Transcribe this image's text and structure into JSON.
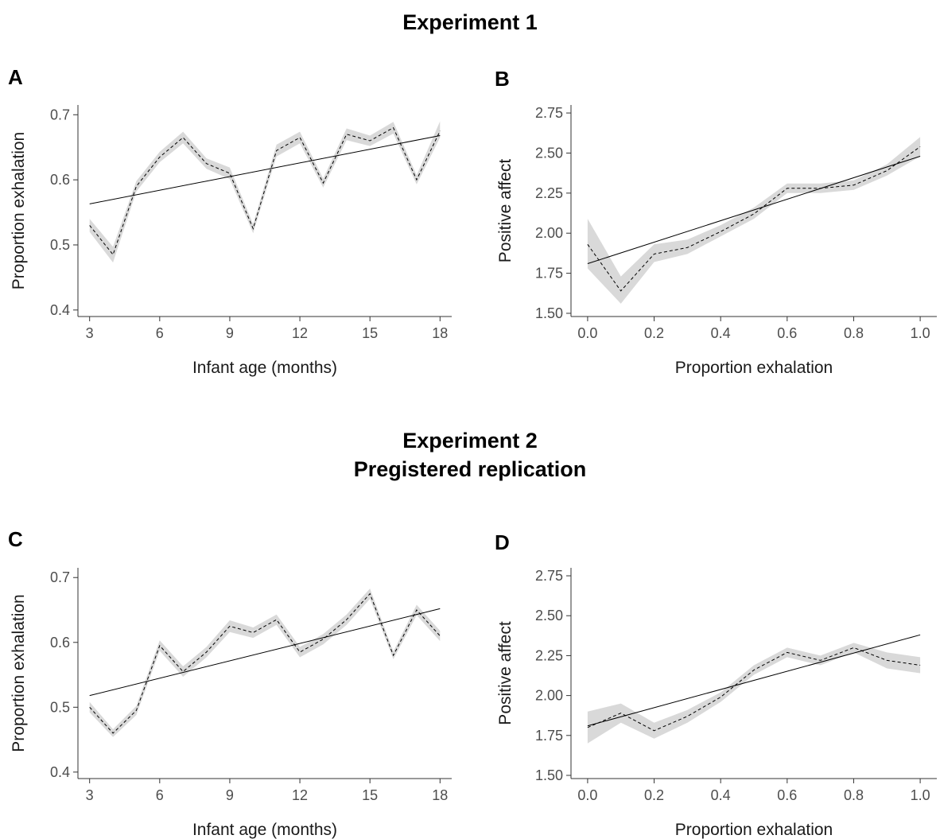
{
  "headings": {
    "exp1": "Experiment 1",
    "exp2_line1": "Experiment 2",
    "exp2_line2": "Pregistered replication"
  },
  "colors": {
    "ribbon": "#d9d9d9",
    "line": "#000000",
    "axis": "#333333",
    "tick_text": "#4d4d4d"
  },
  "chart_data": [
    {
      "panel": "A",
      "type": "line",
      "xlabel": "Infant age (months)",
      "ylabel": "Proportion exhalation",
      "xlim": [
        2.5,
        18.5
      ],
      "ylim": [
        0.39,
        0.715
      ],
      "xticks": [
        3,
        6,
        9,
        12,
        15,
        18
      ],
      "xtick_labels": [
        "3",
        "6",
        "9",
        "12",
        "15",
        "18"
      ],
      "yticks": [
        0.4,
        0.5,
        0.6,
        0.7
      ],
      "ytick_labels": [
        "0.4",
        "0.5",
        "0.6",
        "0.7"
      ],
      "series": [
        {
          "style": "dashed-with-ribbon",
          "x": [
            3,
            4,
            5,
            6,
            7,
            8,
            9,
            10,
            11,
            12,
            13,
            14,
            15,
            16,
            17,
            18
          ],
          "y": [
            0.53,
            0.485,
            0.59,
            0.635,
            0.665,
            0.625,
            0.61,
            0.525,
            0.645,
            0.665,
            0.595,
            0.67,
            0.66,
            0.68,
            0.6,
            0.675
          ],
          "lower": [
            0.52,
            0.473,
            0.582,
            0.627,
            0.656,
            0.617,
            0.601,
            0.518,
            0.636,
            0.656,
            0.588,
            0.661,
            0.652,
            0.671,
            0.593,
            0.665
          ],
          "upper": [
            0.54,
            0.497,
            0.598,
            0.643,
            0.674,
            0.633,
            0.619,
            0.532,
            0.654,
            0.674,
            0.602,
            0.679,
            0.668,
            0.689,
            0.607,
            0.69
          ]
        },
        {
          "style": "solid-fit",
          "x": [
            3,
            18
          ],
          "y": [
            0.563,
            0.668
          ]
        }
      ]
    },
    {
      "panel": "B",
      "type": "line",
      "xlabel": "Proportion exhalation",
      "ylabel": "Positive affect",
      "xlim": [
        -0.05,
        1.05
      ],
      "ylim": [
        1.48,
        2.8
      ],
      "xticks": [
        0.0,
        0.2,
        0.4,
        0.6,
        0.8,
        1.0
      ],
      "xtick_labels": [
        "0.0",
        "0.2",
        "0.4",
        "0.6",
        "0.8",
        "1.0"
      ],
      "yticks": [
        1.5,
        1.75,
        2.0,
        2.25,
        2.5,
        2.75
      ],
      "ytick_labels": [
        "1.50",
        "1.75",
        "2.00",
        "2.25",
        "2.50",
        "2.75"
      ],
      "series": [
        {
          "style": "dashed-with-ribbon",
          "x": [
            0.0,
            0.1,
            0.2,
            0.3,
            0.4,
            0.5,
            0.6,
            0.7,
            0.8,
            0.9,
            1.0
          ],
          "y": [
            1.93,
            1.64,
            1.87,
            1.91,
            2.01,
            2.12,
            2.28,
            2.28,
            2.3,
            2.39,
            2.54
          ],
          "lower": [
            1.78,
            1.56,
            1.82,
            1.87,
            1.98,
            2.09,
            2.25,
            2.25,
            2.27,
            2.36,
            2.48
          ],
          "upper": [
            2.09,
            1.73,
            1.93,
            1.96,
            2.05,
            2.16,
            2.31,
            2.31,
            2.33,
            2.43,
            2.6
          ]
        },
        {
          "style": "solid-fit",
          "x": [
            0.0,
            1.0
          ],
          "y": [
            1.81,
            2.48
          ]
        }
      ]
    },
    {
      "panel": "C",
      "type": "line",
      "xlabel": "Infant age (months)",
      "ylabel": "Proportion exhalation",
      "xlim": [
        2.5,
        18.5
      ],
      "ylim": [
        0.39,
        0.715
      ],
      "xticks": [
        3,
        6,
        9,
        12,
        15,
        18
      ],
      "xtick_labels": [
        "3",
        "6",
        "9",
        "12",
        "15",
        "18"
      ],
      "yticks": [
        0.4,
        0.5,
        0.6,
        0.7
      ],
      "ytick_labels": [
        "0.4",
        "0.5",
        "0.6",
        "0.7"
      ],
      "series": [
        {
          "style": "dashed-with-ribbon",
          "x": [
            3,
            4,
            5,
            6,
            7,
            8,
            9,
            10,
            11,
            12,
            13,
            14,
            15,
            16,
            17,
            18
          ],
          "y": [
            0.5,
            0.46,
            0.495,
            0.595,
            0.555,
            0.585,
            0.625,
            0.615,
            0.635,
            0.585,
            0.605,
            0.635,
            0.675,
            0.58,
            0.65,
            0.61
          ],
          "lower": [
            0.492,
            0.454,
            0.488,
            0.587,
            0.547,
            0.577,
            0.616,
            0.607,
            0.627,
            0.577,
            0.597,
            0.627,
            0.667,
            0.574,
            0.642,
            0.602
          ],
          "upper": [
            0.508,
            0.466,
            0.502,
            0.603,
            0.563,
            0.593,
            0.634,
            0.623,
            0.643,
            0.593,
            0.613,
            0.643,
            0.683,
            0.586,
            0.658,
            0.618
          ]
        },
        {
          "style": "solid-fit",
          "x": [
            3,
            18
          ],
          "y": [
            0.518,
            0.652
          ]
        }
      ]
    },
    {
      "panel": "D",
      "type": "line",
      "xlabel": "Proportion exhalation",
      "ylabel": "Positive affect",
      "xlim": [
        -0.05,
        1.05
      ],
      "ylim": [
        1.48,
        2.8
      ],
      "xticks": [
        0.0,
        0.2,
        0.4,
        0.6,
        0.8,
        1.0
      ],
      "xtick_labels": [
        "0.0",
        "0.2",
        "0.4",
        "0.6",
        "0.8",
        "1.0"
      ],
      "yticks": [
        1.5,
        1.75,
        2.0,
        2.25,
        2.5,
        2.75
      ],
      "ytick_labels": [
        "1.50",
        "1.75",
        "2.00",
        "2.25",
        "2.50",
        "2.75"
      ],
      "series": [
        {
          "style": "dashed-with-ribbon",
          "x": [
            0.0,
            0.1,
            0.2,
            0.3,
            0.4,
            0.5,
            0.6,
            0.7,
            0.8,
            0.9,
            1.0
          ],
          "y": [
            1.8,
            1.89,
            1.78,
            1.87,
            1.99,
            2.16,
            2.27,
            2.22,
            2.3,
            2.22,
            2.19
          ],
          "lower": [
            1.7,
            1.83,
            1.73,
            1.83,
            1.96,
            2.13,
            2.24,
            2.19,
            2.27,
            2.17,
            2.14
          ],
          "upper": [
            1.9,
            1.95,
            1.83,
            1.91,
            2.02,
            2.19,
            2.3,
            2.25,
            2.33,
            2.27,
            2.24
          ]
        },
        {
          "style": "solid-fit",
          "x": [
            0.0,
            1.0
          ],
          "y": [
            1.81,
            2.38
          ]
        }
      ]
    }
  ]
}
